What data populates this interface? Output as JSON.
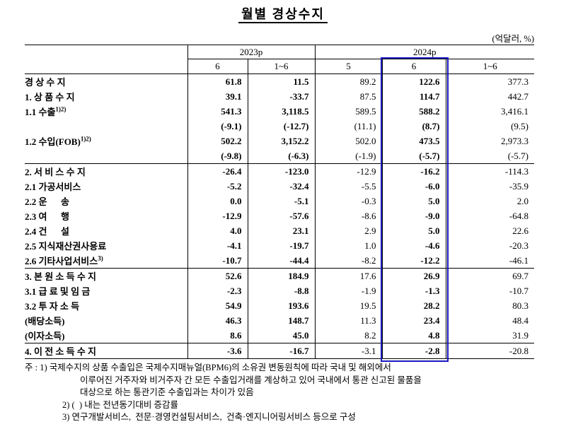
{
  "page_title": "월별 경상수지",
  "unit_note": "(억달러, %)",
  "table": {
    "highlight_color": "#1a1ac0",
    "highlight_col": 3,
    "col_groups": [
      {
        "label": "2023p",
        "span": 2
      },
      {
        "label": "2024p",
        "span": 3
      }
    ],
    "col_headers": [
      "6",
      "1~6",
      "5",
      "6",
      "1~6"
    ],
    "rows": [
      {
        "label": "경 상 수 지",
        "sup": "",
        "indent": 0,
        "section_start": false,
        "values": [
          "61.8",
          "11.5",
          "89.2",
          "122.6",
          "377.3"
        ]
      },
      {
        "label": "1. 상 품 수 지",
        "sup": "",
        "indent": 1,
        "section_start": false,
        "values": [
          "39.1",
          "-33.7",
          "87.5",
          "114.7",
          "442.7"
        ]
      },
      {
        "label": "1.1 수출",
        "sup": "1)2)",
        "indent": 2,
        "section_start": false,
        "values": [
          "541.3",
          "3,118.5",
          "589.5",
          "588.2",
          "3,416.1"
        ]
      },
      {
        "label": "",
        "sup": "",
        "indent": 2,
        "section_start": false,
        "values": [
          "(-9.1)",
          "(-12.7)",
          "(11.1)",
          "(8.7)",
          "(9.5)"
        ]
      },
      {
        "label": "1.2 수입(FOB)",
        "sup": "1)2)",
        "indent": 2,
        "section_start": false,
        "values": [
          "502.2",
          "3,152.2",
          "502.0",
          "473.5",
          "2,973.3"
        ]
      },
      {
        "label": "",
        "sup": "",
        "indent": 2,
        "section_start": false,
        "values": [
          "(-9.8)",
          "(-6.3)",
          "(-1.9)",
          "(-5.7)",
          "(-5.7)"
        ]
      },
      {
        "label": "2. 서 비 스 수 지",
        "sup": "",
        "indent": 1,
        "section_start": true,
        "values": [
          "-26.4",
          "-123.0",
          "-12.9",
          "-16.2",
          "-114.3"
        ]
      },
      {
        "label": "2.1 가공서비스",
        "sup": "",
        "indent": 2,
        "section_start": false,
        "values": [
          "-5.2",
          "-32.4",
          "-5.5",
          "-6.0",
          "-35.9"
        ]
      },
      {
        "label": "2.2 운      송",
        "sup": "",
        "indent": 2,
        "section_start": false,
        "values": [
          "0.0",
          "-5.1",
          "-0.3",
          "5.0",
          "2.0"
        ]
      },
      {
        "label": "2.3 여      행",
        "sup": "",
        "indent": 2,
        "section_start": false,
        "values": [
          "-12.9",
          "-57.6",
          "-8.6",
          "-9.0",
          "-64.8"
        ]
      },
      {
        "label": "2.4 건      설",
        "sup": "",
        "indent": 2,
        "section_start": false,
        "values": [
          "4.0",
          "23.1",
          "2.9",
          "5.0",
          "22.6"
        ]
      },
      {
        "label": "2.5 지식재산권사용료",
        "sup": "",
        "indent": 2,
        "section_start": false,
        "values": [
          "-4.1",
          "-19.7",
          "1.0",
          "-4.6",
          "-20.3"
        ]
      },
      {
        "label": "2.6 기타사업서비스",
        "sup": "3)",
        "indent": 2,
        "section_start": false,
        "values": [
          "-10.7",
          "-44.4",
          "-8.2",
          "-12.2",
          "-46.1"
        ]
      },
      {
        "label": "3. 본 원 소 득 수 지",
        "sup": "",
        "indent": 1,
        "section_start": true,
        "values": [
          "52.6",
          "184.9",
          "17.6",
          "26.9",
          "69.7"
        ]
      },
      {
        "label": "3.1 급 료 및 임 금",
        "sup": "",
        "indent": 2,
        "section_start": false,
        "values": [
          "-2.3",
          "-8.8",
          "-1.9",
          "-1.3",
          "-10.7"
        ]
      },
      {
        "label": "3.2 투 자 소 득",
        "sup": "",
        "indent": 2,
        "section_start": false,
        "values": [
          "54.9",
          "193.6",
          "19.5",
          "28.2",
          "80.3"
        ]
      },
      {
        "label": "(배당소득)",
        "sup": "",
        "indent": 3,
        "section_start": false,
        "values": [
          "46.3",
          "148.7",
          "11.3",
          "23.4",
          "48.4"
        ]
      },
      {
        "label": "(이자소득)",
        "sup": "",
        "indent": 3,
        "section_start": false,
        "values": [
          "8.6",
          "45.0",
          "8.2",
          "4.8",
          "31.9"
        ]
      },
      {
        "label": "4. 이 전 소 득 수 지",
        "sup": "",
        "indent": 1,
        "section_start": true,
        "values": [
          "-3.6",
          "-16.7",
          "-3.1",
          "-2.8",
          "-20.8"
        ]
      }
    ]
  },
  "footnotes": {
    "lines": [
      "주 : 1) 국제수지의 상품 수출입은 국제수지매뉴얼(BPM6)의 소유권 변동원칙에 따라 국내 및 해외에서",
      "이루어진 거주자와 비거주자 간 모든 수출입거래를 계상하고 있어 국내에서 통관 신고된 물품을",
      "대상으로 하는 통관기준 수출입과는 차이가 있음",
      "2) (  ) 내는 전년동기대비 증감률",
      "3) 연구개발서비스,  전문·경영컨설팅서비스,  건축·엔지니어링서비스 등으로 구성"
    ]
  }
}
